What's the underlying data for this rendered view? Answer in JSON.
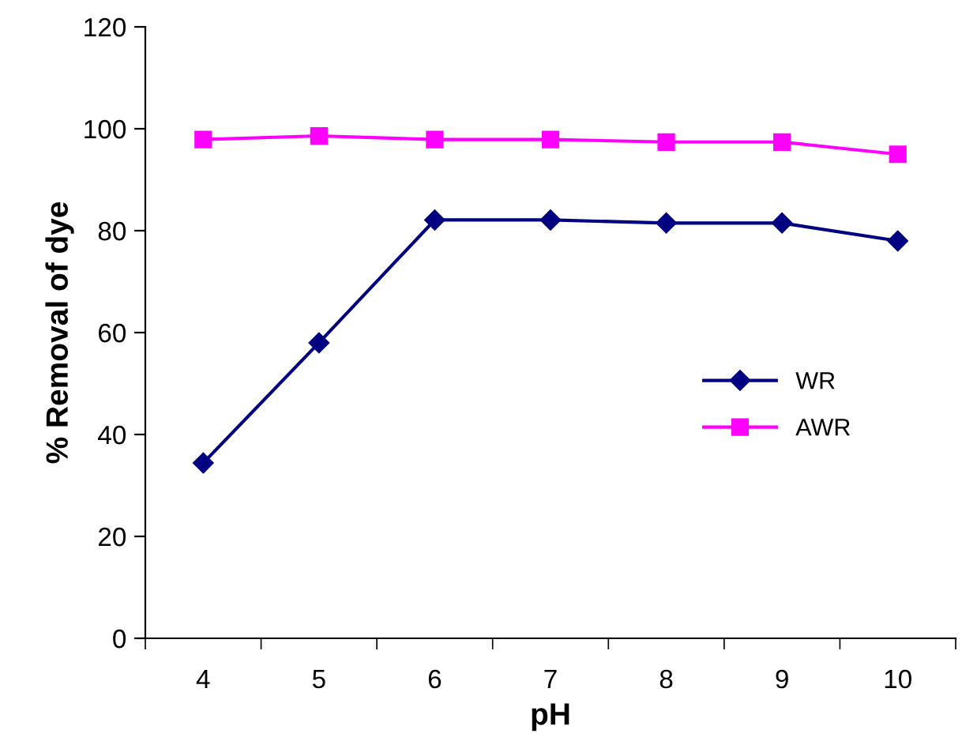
{
  "chart_data": {
    "type": "line",
    "xlabel": "pH",
    "ylabel": "% Removal of dye",
    "categories": [
      "4",
      "5",
      "6",
      "7",
      "8",
      "9",
      "10"
    ],
    "series": [
      {
        "name": "WR",
        "color": "#000080",
        "marker": "diamond",
        "values": [
          34.4,
          58.0,
          82.1,
          82.1,
          81.5,
          81.5,
          78.0
        ]
      },
      {
        "name": "AWR",
        "color": "#ff00ff",
        "marker": "square",
        "values": [
          97.9,
          98.6,
          97.9,
          97.9,
          97.4,
          97.4,
          95.0
        ]
      }
    ],
    "ylim": [
      0,
      120
    ],
    "yticks": [
      0,
      20,
      40,
      60,
      80,
      100,
      120
    ],
    "grid": false,
    "legend": "center right",
    "line_style": "solid"
  }
}
